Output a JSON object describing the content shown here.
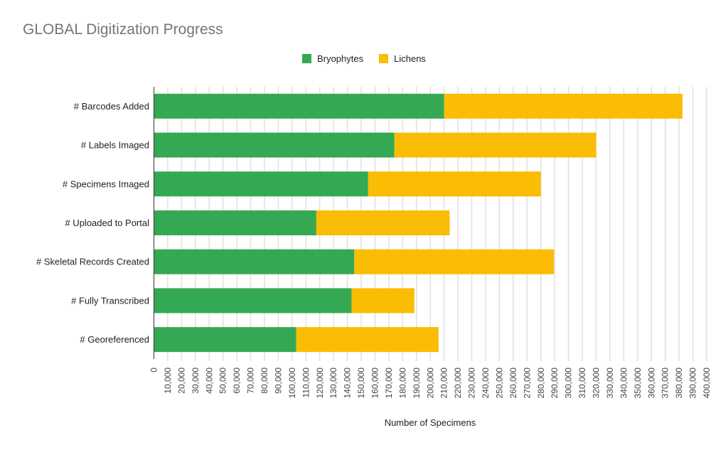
{
  "chart_data": {
    "type": "bar",
    "orientation": "horizontal",
    "stacked": true,
    "title": "GLOBAL Digitization Progress",
    "xlabel": "Number of Specimens",
    "ylabel": "",
    "xlim": [
      0,
      400000
    ],
    "xtick_step": 10000,
    "grid": true,
    "legend_position": "top",
    "categories": [
      "# Barcodes Added",
      "# Labels Imaged",
      "# Specimens Imaged",
      "# Uploaded to Portal",
      "# Skeletal Records Created",
      "# Fully Transcribed",
      "# Georeferenced"
    ],
    "series": [
      {
        "name": "Bryophytes",
        "color": "#34a853",
        "values": [
          210000,
          174000,
          155000,
          117500,
          145000,
          143000,
          103000
        ]
      },
      {
        "name": "Lichens",
        "color": "#fbbc04",
        "values": [
          172500,
          146000,
          125000,
          96500,
          144500,
          45500,
          103000
        ]
      }
    ]
  }
}
